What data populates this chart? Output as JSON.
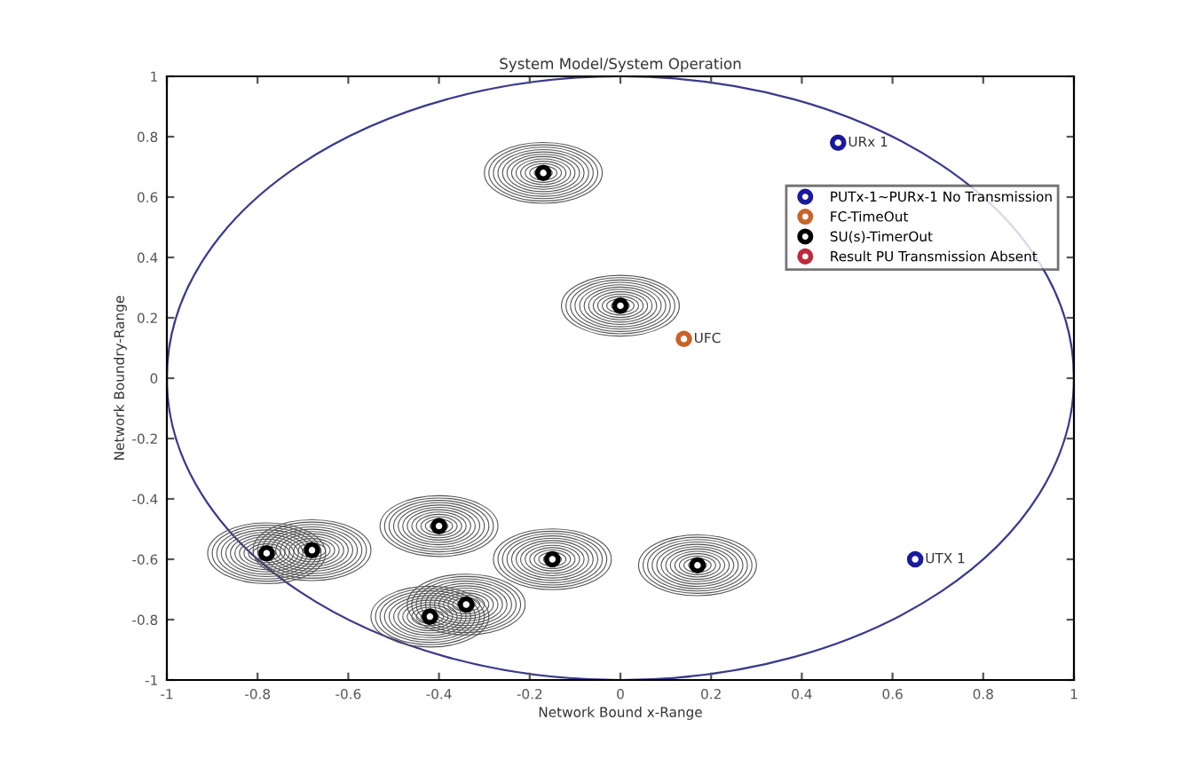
{
  "chart_data": {
    "type": "scatter",
    "title": "System Model/System Operation",
    "xlabel": "Network Bound x-Range",
    "ylabel": "Network Boundry-Range",
    "xlim": [
      -1,
      1
    ],
    "ylim": [
      -1,
      1
    ],
    "xticks": [
      -1,
      -0.8,
      -0.6,
      -0.4,
      -0.2,
      0,
      0.2,
      0.4,
      0.6,
      0.8,
      1
    ],
    "yticks": [
      -1,
      -0.8,
      -0.6,
      -0.4,
      -0.2,
      0,
      0.2,
      0.4,
      0.6,
      0.8,
      1
    ],
    "grid": false,
    "legend": "top right",
    "marker": "circle",
    "series": [
      {
        "name": "PUTx-1~PURx-1 No Transmission",
        "color": "#1a1a9a",
        "x": [
          0.48,
          0.65
        ],
        "values": [
          0.78,
          -0.6
        ]
      },
      {
        "name": "FC-TimeOut",
        "color": "#c8642a",
        "x": [
          0.14
        ],
        "values": [
          0.13
        ]
      },
      {
        "name": "SU(s)-TimerOut",
        "color": "#000000",
        "x": [
          -0.17,
          0,
          -0.15,
          0.17,
          -0.78,
          -0.68,
          -0.4,
          -0.42,
          -0.34
        ],
        "values": [
          0.68,
          0.24,
          -0.6,
          -0.62,
          -0.58,
          -0.57,
          -0.49,
          -0.79,
          -0.75
        ]
      },
      {
        "name": "Result PU Transmission Absent",
        "color": "#c0283c"
      }
    ],
    "annotations": [
      {
        "text": "URx 1",
        "x": 0.48,
        "y": 0.78
      },
      {
        "text": "UTX 1",
        "x": 0.65,
        "y": -0.6
      },
      {
        "text": "UFC",
        "x": 0.14,
        "y": 0.13
      }
    ]
  }
}
